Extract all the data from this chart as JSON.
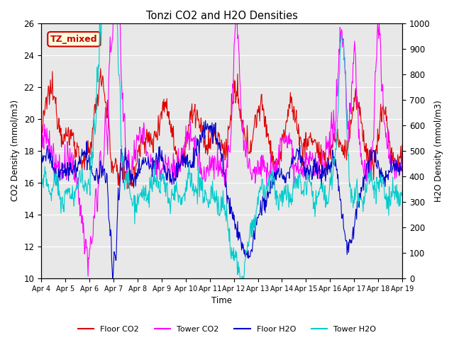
{
  "title": "Tonzi CO2 and H2O Densities",
  "xlabel": "Time",
  "ylabel_left": "CO2 Density (mmol/m3)",
  "ylabel_right": "H2O Density (mmol/m3)",
  "ylim_left": [
    10,
    26
  ],
  "ylim_right": [
    0,
    1000
  ],
  "annotation_text": "TZ_mixed",
  "annotation_color": "#cc0000",
  "annotation_bg": "#ffffdd",
  "colors": {
    "floor_co2": "#dd0000",
    "tower_co2": "#ff00ff",
    "floor_h2o": "#0000cc",
    "tower_h2o": "#00cccc"
  },
  "legend_labels": [
    "Floor CO2",
    "Tower CO2",
    "Floor H2O",
    "Tower H2O"
  ],
  "bg_color": "#e8e8e8",
  "n_points": 720,
  "xtick_labels": [
    "Apr 4",
    "Apr 5",
    "Apr 6",
    "Apr 7",
    "Apr 8",
    "Apr 9",
    "Apr 10",
    "Apr 11",
    "Apr 12",
    "Apr 13",
    "Apr 14",
    "Apr 15",
    "Apr 16",
    "Apr 17",
    "Apr 18",
    "Apr 19"
  ],
  "yticks_left": [
    10,
    12,
    14,
    16,
    18,
    20,
    22,
    24,
    26
  ],
  "yticks_right": [
    0,
    100,
    200,
    300,
    400,
    500,
    600,
    700,
    800,
    900,
    1000
  ]
}
